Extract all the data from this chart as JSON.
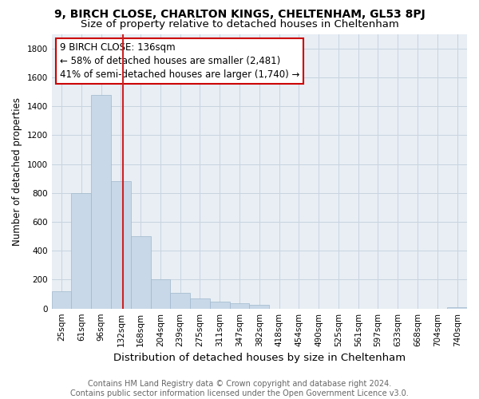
{
  "title1": "9, BIRCH CLOSE, CHARLTON KINGS, CHELTENHAM, GL53 8PJ",
  "title2": "Size of property relative to detached houses in Cheltenham",
  "xlabel": "Distribution of detached houses by size in Cheltenham",
  "ylabel": "Number of detached properties",
  "categories": [
    "25sqm",
    "61sqm",
    "96sqm",
    "132sqm",
    "168sqm",
    "204sqm",
    "239sqm",
    "275sqm",
    "311sqm",
    "347sqm",
    "382sqm",
    "418sqm",
    "454sqm",
    "490sqm",
    "525sqm",
    "561sqm",
    "597sqm",
    "633sqm",
    "668sqm",
    "704sqm",
    "740sqm"
  ],
  "values": [
    120,
    800,
    1480,
    880,
    500,
    205,
    108,
    68,
    50,
    35,
    25,
    0,
    0,
    0,
    0,
    0,
    0,
    0,
    0,
    0,
    10
  ],
  "bar_color": "#c8d8e8",
  "bar_edge_color": "#a0b8cc",
  "annotation_line1": "9 BIRCH CLOSE: 136sqm",
  "annotation_line2": "← 58% of detached houses are smaller (2,481)",
  "annotation_line3": "41% of semi-detached houses are larger (1,740) →",
  "annotation_box_color": "#ffffff",
  "annotation_box_edge_color": "#cc0000",
  "vline_color": "#cc2222",
  "ylim": [
    0,
    1900
  ],
  "yticks": [
    0,
    200,
    400,
    600,
    800,
    1000,
    1200,
    1400,
    1600,
    1800
  ],
  "grid_color": "#c8d4e0",
  "background_color": "#e8eef4",
  "footer_text": "Contains HM Land Registry data © Crown copyright and database right 2024.\nContains public sector information licensed under the Open Government Licence v3.0.",
  "title1_fontsize": 10,
  "title2_fontsize": 9.5,
  "xlabel_fontsize": 9.5,
  "ylabel_fontsize": 8.5,
  "tick_fontsize": 7.5,
  "annotation_fontsize": 8.5,
  "footer_fontsize": 7
}
